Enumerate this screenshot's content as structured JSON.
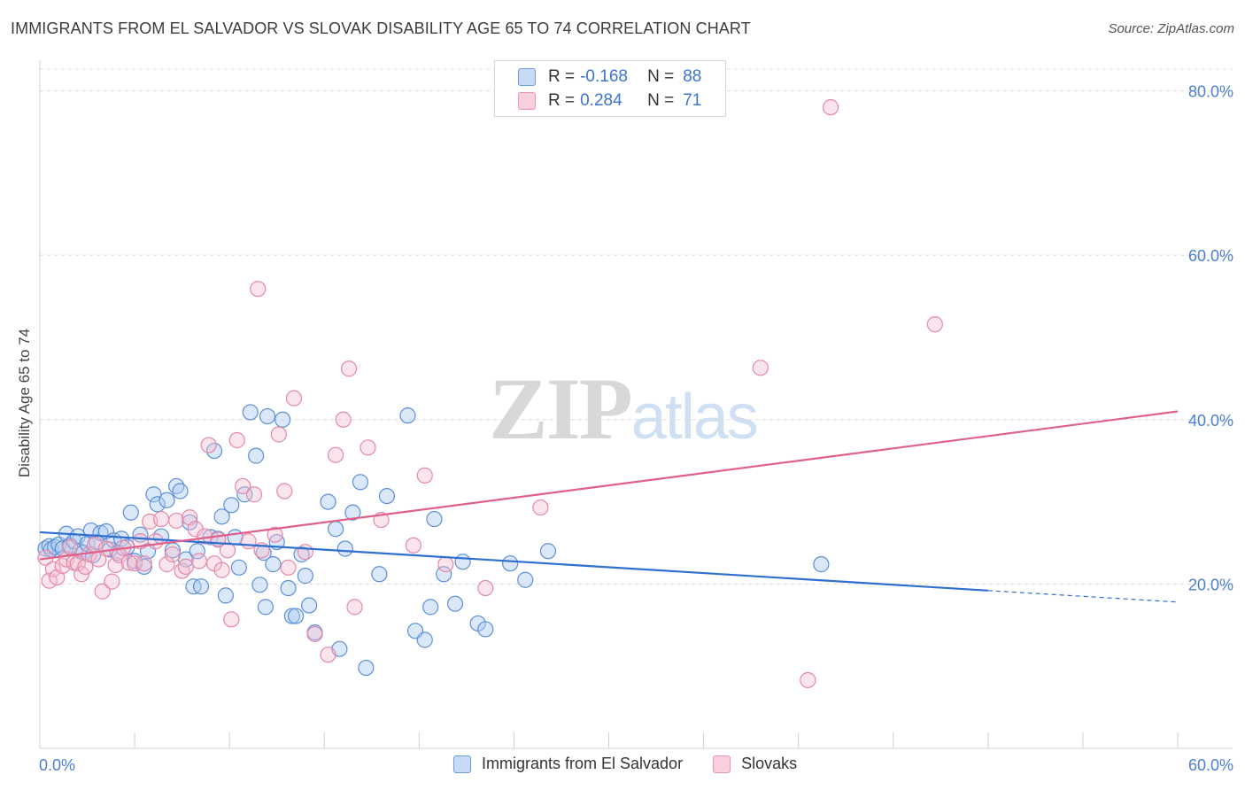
{
  "header": {
    "title": "IMMIGRANTS FROM EL SALVADOR VS SLOVAK DISABILITY AGE 65 TO 74 CORRELATION CHART",
    "source": "Source: ZipAtlas.com"
  },
  "watermark": {
    "zip": "ZIP",
    "atlas": "atlas"
  },
  "legend": {
    "series1": {
      "r_label": "R =",
      "r_value": "-0.168",
      "n_label": "N =",
      "n_value": "88"
    },
    "series2": {
      "r_label": "R =",
      "r_value": "0.284",
      "n_label": "N =",
      "n_value": "71"
    }
  },
  "colors": {
    "blue_fill": "#aecbf2",
    "blue_stroke": "#5b8fd9",
    "blue_line": "#2f6fd0",
    "pink_fill": "#f6bdd0",
    "pink_stroke": "#e588a8",
    "pink_line": "#e0608c",
    "grid": "#dcdcdc",
    "tick_text": "#4a7fd4"
  },
  "chart_data": {
    "type": "scatter",
    "title": "IMMIGRANTS FROM EL SALVADOR VS SLOVAK DISABILITY AGE 65 TO 74 CORRELATION CHART",
    "xlabel": "",
    "ylabel": "Disability Age 65 to 74",
    "xlim": [
      0,
      60
    ],
    "ylim": [
      0,
      80
    ],
    "x_tick_labels": [
      "0.0%",
      "60.0%"
    ],
    "y_ticks": [
      20,
      40,
      60,
      80
    ],
    "y_tick_labels": [
      "20.0%",
      "40.0%",
      "60.0%",
      "80.0%"
    ],
    "grid": true,
    "legend_position": "top-center",
    "series": [
      {
        "name": "Immigrants from El Salvador",
        "color": "#5b8fd9",
        "trend": {
          "x": [
            0,
            50
          ],
          "y": [
            26.3,
            19.2
          ],
          "dashed_extension": {
            "x": [
              50,
              60
            ],
            "y": [
              19.2,
              17.8
            ]
          }
        },
        "points": [
          [
            0.3,
            24.3
          ],
          [
            0.5,
            24.6
          ],
          [
            0.6,
            24.2
          ],
          [
            0.8,
            24.5
          ],
          [
            1.0,
            24.8
          ],
          [
            1.2,
            24.3
          ],
          [
            1.4,
            26.1
          ],
          [
            1.6,
            24.7
          ],
          [
            1.8,
            25.2
          ],
          [
            2.0,
            25.8
          ],
          [
            2.1,
            24.0
          ],
          [
            2.3,
            23.8
          ],
          [
            2.5,
            24.9
          ],
          [
            2.7,
            26.5
          ],
          [
            2.8,
            23.5
          ],
          [
            3.0,
            25.1
          ],
          [
            3.2,
            26.2
          ],
          [
            3.5,
            26.4
          ],
          [
            3.7,
            24.2
          ],
          [
            3.9,
            25.3
          ],
          [
            4.1,
            23.8
          ],
          [
            4.3,
            25.5
          ],
          [
            4.6,
            24.5
          ],
          [
            4.8,
            28.7
          ],
          [
            5.0,
            22.8
          ],
          [
            5.3,
            26.0
          ],
          [
            5.5,
            22.1
          ],
          [
            5.7,
            24.0
          ],
          [
            6.0,
            30.9
          ],
          [
            6.2,
            29.7
          ],
          [
            6.4,
            25.8
          ],
          [
            6.7,
            30.2
          ],
          [
            7.0,
            24.1
          ],
          [
            7.2,
            31.9
          ],
          [
            7.4,
            31.3
          ],
          [
            7.7,
            23.0
          ],
          [
            7.9,
            27.5
          ],
          [
            8.1,
            19.7
          ],
          [
            8.3,
            24.0
          ],
          [
            8.5,
            19.7
          ],
          [
            9.0,
            25.7
          ],
          [
            9.2,
            36.2
          ],
          [
            9.4,
            25.5
          ],
          [
            9.6,
            28.2
          ],
          [
            9.8,
            18.6
          ],
          [
            10.1,
            29.6
          ],
          [
            10.3,
            25.7
          ],
          [
            10.5,
            22.0
          ],
          [
            10.8,
            30.9
          ],
          [
            11.1,
            40.9
          ],
          [
            11.4,
            35.6
          ],
          [
            11.6,
            19.9
          ],
          [
            11.8,
            23.8
          ],
          [
            11.9,
            17.2
          ],
          [
            12.0,
            40.4
          ],
          [
            12.3,
            22.4
          ],
          [
            12.5,
            25.1
          ],
          [
            12.8,
            40.0
          ],
          [
            13.1,
            19.5
          ],
          [
            13.3,
            16.1
          ],
          [
            13.5,
            16.1
          ],
          [
            13.8,
            23.6
          ],
          [
            14.0,
            21.0
          ],
          [
            14.2,
            17.4
          ],
          [
            14.5,
            14.1
          ],
          [
            15.2,
            30.0
          ],
          [
            15.6,
            26.7
          ],
          [
            15.8,
            12.1
          ],
          [
            16.1,
            24.3
          ],
          [
            16.5,
            28.7
          ],
          [
            16.9,
            32.4
          ],
          [
            17.2,
            9.8
          ],
          [
            17.9,
            21.2
          ],
          [
            18.3,
            30.7
          ],
          [
            19.4,
            40.5
          ],
          [
            19.8,
            14.3
          ],
          [
            20.3,
            13.2
          ],
          [
            20.6,
            17.2
          ],
          [
            20.8,
            27.9
          ],
          [
            21.3,
            21.2
          ],
          [
            21.9,
            17.6
          ],
          [
            22.3,
            22.7
          ],
          [
            23.1,
            15.2
          ],
          [
            23.5,
            14.5
          ],
          [
            24.8,
            22.5
          ],
          [
            25.6,
            20.5
          ],
          [
            26.8,
            24.0
          ],
          [
            41.2,
            22.4
          ]
        ]
      },
      {
        "name": "Slovaks",
        "color": "#e588a8",
        "trend": {
          "x": [
            0,
            60
          ],
          "y": [
            23.0,
            41.0
          ]
        },
        "points": [
          [
            0.3,
            23.2
          ],
          [
            0.5,
            20.4
          ],
          [
            0.7,
            21.8
          ],
          [
            0.9,
            20.8
          ],
          [
            1.2,
            22.2
          ],
          [
            1.4,
            23.0
          ],
          [
            1.6,
            24.5
          ],
          [
            1.8,
            22.6
          ],
          [
            2.0,
            22.5
          ],
          [
            2.2,
            21.2
          ],
          [
            2.4,
            22.1
          ],
          [
            2.6,
            23.6
          ],
          [
            2.9,
            24.8
          ],
          [
            3.1,
            23.0
          ],
          [
            3.3,
            19.1
          ],
          [
            3.5,
            24.3
          ],
          [
            3.8,
            20.3
          ],
          [
            4.0,
            22.3
          ],
          [
            4.2,
            23.5
          ],
          [
            4.4,
            24.4
          ],
          [
            4.7,
            22.6
          ],
          [
            5.0,
            22.5
          ],
          [
            5.3,
            25.2
          ],
          [
            5.5,
            22.5
          ],
          [
            5.8,
            27.6
          ],
          [
            6.1,
            25.2
          ],
          [
            6.4,
            27.9
          ],
          [
            6.7,
            22.4
          ],
          [
            7.0,
            23.6
          ],
          [
            7.2,
            27.7
          ],
          [
            7.5,
            21.6
          ],
          [
            7.7,
            22.1
          ],
          [
            7.9,
            28.1
          ],
          [
            8.2,
            26.7
          ],
          [
            8.4,
            22.8
          ],
          [
            8.7,
            25.8
          ],
          [
            8.9,
            36.9
          ],
          [
            9.2,
            22.5
          ],
          [
            9.4,
            25.4
          ],
          [
            9.6,
            21.7
          ],
          [
            9.9,
            24.1
          ],
          [
            10.1,
            15.7
          ],
          [
            10.4,
            37.5
          ],
          [
            10.7,
            31.9
          ],
          [
            11.0,
            25.2
          ],
          [
            11.3,
            30.9
          ],
          [
            11.5,
            55.9
          ],
          [
            11.7,
            24.1
          ],
          [
            12.4,
            26.0
          ],
          [
            12.6,
            38.2
          ],
          [
            12.9,
            31.3
          ],
          [
            13.1,
            22.0
          ],
          [
            13.4,
            42.6
          ],
          [
            14.0,
            23.9
          ],
          [
            14.5,
            13.9
          ],
          [
            15.2,
            11.4
          ],
          [
            15.6,
            35.7
          ],
          [
            16.0,
            40.0
          ],
          [
            16.3,
            46.2
          ],
          [
            16.6,
            17.2
          ],
          [
            17.3,
            36.6
          ],
          [
            18.0,
            27.8
          ],
          [
            19.7,
            24.7
          ],
          [
            20.3,
            33.2
          ],
          [
            21.4,
            22.4
          ],
          [
            23.5,
            19.5
          ],
          [
            26.4,
            29.3
          ],
          [
            38.0,
            46.3
          ],
          [
            40.5,
            8.3
          ],
          [
            47.2,
            51.6
          ],
          [
            41.7,
            78.0
          ]
        ]
      }
    ]
  },
  "bottom_legend": {
    "series1": "Immigrants from El Salvador",
    "series2": "Slovaks"
  }
}
